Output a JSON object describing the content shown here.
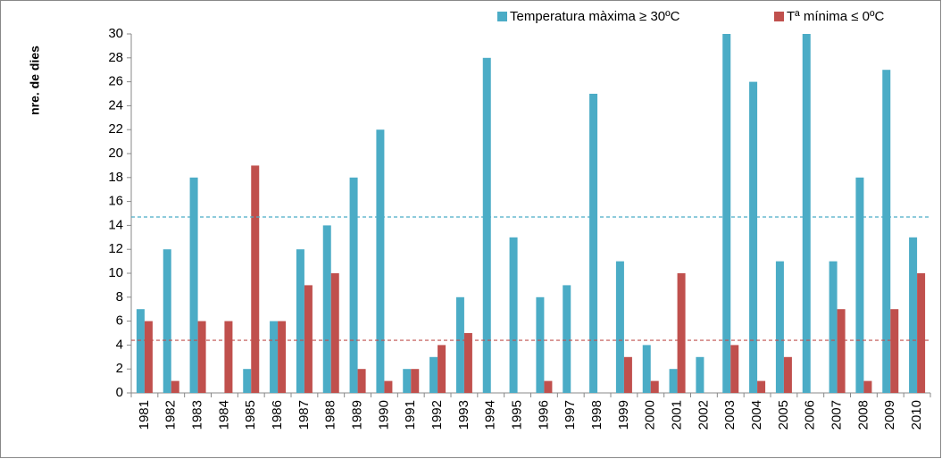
{
  "chart_data": {
    "type": "bar",
    "y_label": "nre. de dies",
    "categories": [
      "1981",
      "1982",
      "1983",
      "1984",
      "1985",
      "1986",
      "1987",
      "1988",
      "1989",
      "1990",
      "1991",
      "1992",
      "1993",
      "1994",
      "1995",
      "1996",
      "1997",
      "1998",
      "1999",
      "2000",
      "2001",
      "2002",
      "2003",
      "2004",
      "2005",
      "2006",
      "2007",
      "2008",
      "2009",
      "2010"
    ],
    "series": [
      {
        "name": "Temperatura màxima ≥ 30ºC",
        "color": "#4bacc6",
        "values": [
          7,
          12,
          18,
          0,
          2,
          6,
          12,
          14,
          18,
          22,
          2,
          3,
          8,
          28,
          13,
          8,
          9,
          25,
          11,
          4,
          2,
          3,
          30,
          26,
          11,
          30,
          11,
          18,
          27,
          13
        ]
      },
      {
        "name": "Tª mínima ≤ 0ºC",
        "color": "#c0504d",
        "values": [
          6,
          1,
          6,
          6,
          19,
          6,
          9,
          10,
          2,
          1,
          2,
          4,
          5,
          0,
          0,
          1,
          0,
          0,
          3,
          1,
          10,
          0,
          4,
          1,
          3,
          0,
          7,
          1,
          7,
          10
        ]
      }
    ],
    "reference_lines": [
      {
        "value": 14.7,
        "color": "#4bacc6"
      },
      {
        "value": 4.4,
        "color": "#c0504d"
      }
    ],
    "ylim": [
      0,
      30
    ],
    "yticks": [
      0,
      2,
      4,
      6,
      8,
      10,
      12,
      14,
      16,
      18,
      20,
      22,
      24,
      26,
      28,
      30
    ],
    "grid": false,
    "legend": "top-right"
  }
}
